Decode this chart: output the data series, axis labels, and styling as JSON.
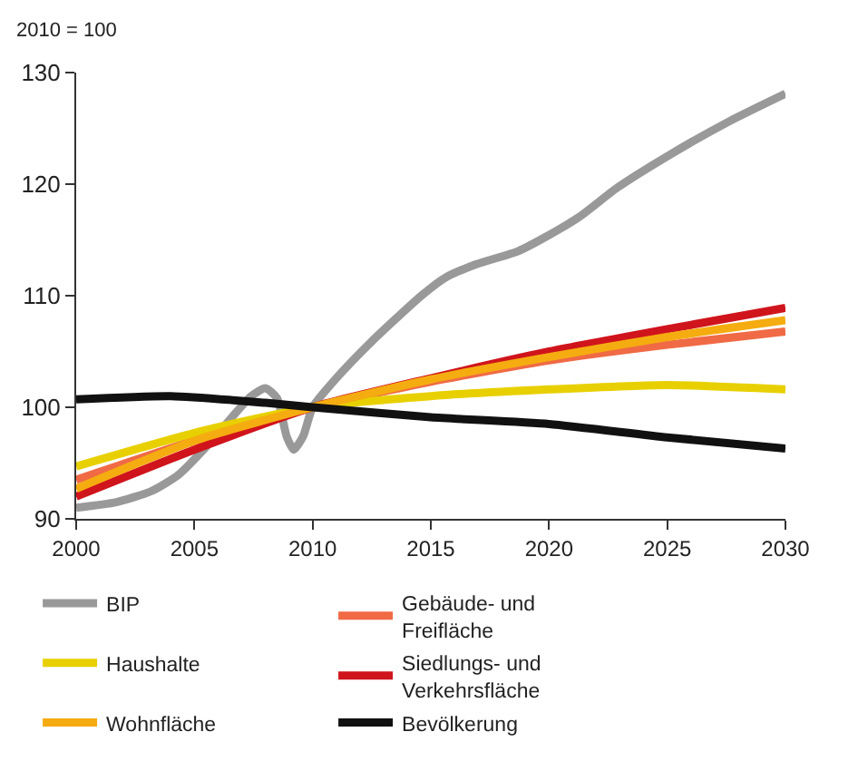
{
  "chart_data": {
    "type": "line",
    "ylabel": "2010 = 100",
    "xlim": [
      2000,
      2030
    ],
    "xticks": [
      2000,
      2005,
      2010,
      2015,
      2020,
      2025,
      2030
    ],
    "ylim": [
      90,
      130
    ],
    "yticks": [
      90,
      100,
      110,
      120,
      130
    ],
    "legend": "bottom",
    "marker": "none",
    "line_style": "solid",
    "series": [
      {
        "name": "BIP",
        "color": "#999999",
        "x": [
          2000,
          2001.7,
          2003.2,
          2004.3,
          2005.3,
          2006.3,
          2007.4,
          2008,
          2008.5,
          2008.9,
          2009.2,
          2009.6,
          2010,
          2011,
          2012.5,
          2014.6,
          2015.6,
          2016.9,
          2018.7,
          2019.8,
          2021.3,
          2022.9,
          2025,
          2027.6,
          2030
        ],
        "values": [
          91.0,
          91.5,
          92.5,
          93.9,
          96.0,
          98.4,
          101.0,
          101.7,
          100.8,
          97.4,
          96.2,
          97.4,
          100.0,
          102.6,
          105.9,
          110.0,
          111.6,
          112.8,
          114.0,
          115.2,
          117.1,
          119.7,
          122.5,
          125.6,
          128.1
        ]
      },
      {
        "name": "Gebäude- und\nFreifläche",
        "color": "#f06a45",
        "x": [
          2000,
          2005,
          2010,
          2015,
          2020,
          2025,
          2030
        ],
        "values": [
          93.5,
          97.0,
          100.0,
          102.3,
          104.2,
          105.6,
          106.8
        ]
      },
      {
        "name": "Haushalte",
        "color": "#e8d000",
        "x": [
          2000,
          2005,
          2010,
          2015,
          2020,
          2025,
          2030
        ],
        "values": [
          94.7,
          97.7,
          100.0,
          101.0,
          101.6,
          102.0,
          101.6
        ]
      },
      {
        "name": "Siedlungs- und\nVerkehrsfläche",
        "color": "#d0141c",
        "x": [
          2000,
          2005,
          2010,
          2015,
          2020,
          2025,
          2030
        ],
        "values": [
          92.0,
          96.2,
          100.0,
          102.6,
          105.0,
          107.0,
          108.9
        ]
      },
      {
        "name": "Wohnfläche",
        "color": "#f5ac10",
        "x": [
          2000,
          2005,
          2010,
          2015,
          2020,
          2025,
          2030
        ],
        "values": [
          92.7,
          97.0,
          100.0,
          102.5,
          104.5,
          106.3,
          107.8
        ]
      },
      {
        "name": "Bevölkerung",
        "color": "#111111",
        "x": [
          2000,
          2004,
          2008,
          2010,
          2015,
          2020,
          2025,
          2030
        ],
        "values": [
          100.7,
          101.0,
          100.4,
          100.0,
          99.1,
          98.5,
          97.3,
          96.3
        ]
      }
    ]
  }
}
